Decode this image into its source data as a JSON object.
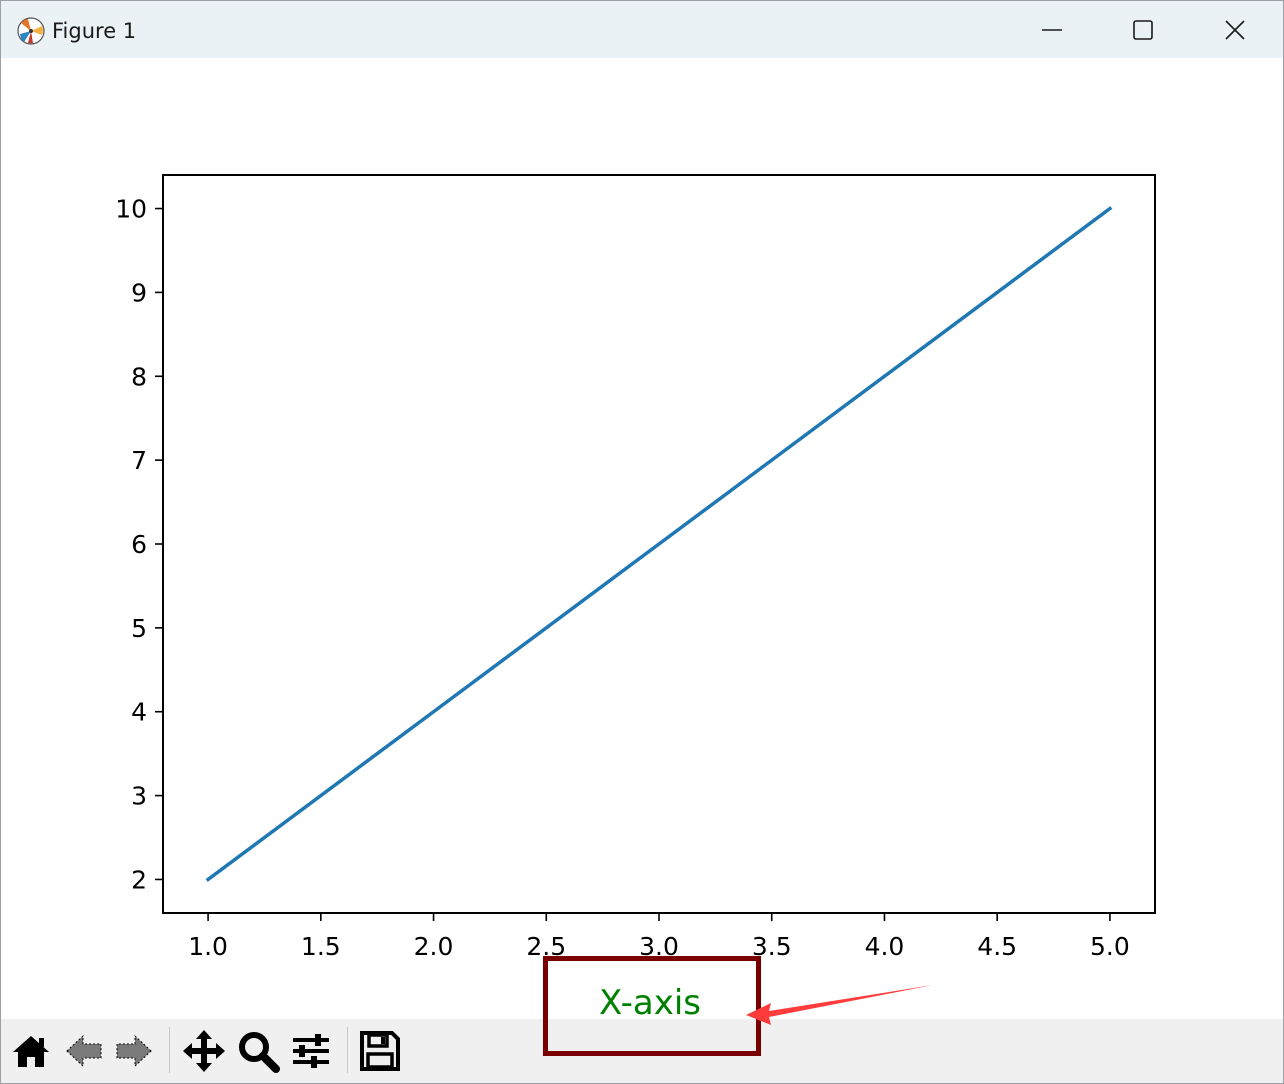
{
  "window": {
    "title": "Figure 1",
    "controls": [
      "minimize-icon",
      "maximize-icon",
      "close-icon"
    ]
  },
  "toolbar": {
    "buttons": [
      {
        "name": "home",
        "icon": "home-icon"
      },
      {
        "name": "back",
        "icon": "back-arrow-icon"
      },
      {
        "name": "forward",
        "icon": "forward-arrow-icon"
      },
      {
        "name": "pan",
        "icon": "move-icon"
      },
      {
        "name": "zoom",
        "icon": "magnifier-icon"
      },
      {
        "name": "configure-subplots",
        "icon": "sliders-icon"
      },
      {
        "name": "save",
        "icon": "floppy-disk-icon"
      }
    ]
  },
  "chart_data": {
    "type": "line",
    "x": [
      1,
      2,
      3,
      4,
      5
    ],
    "series": [
      {
        "values": [
          2,
          4,
          6,
          8,
          10
        ],
        "color": "#1f77b4"
      }
    ],
    "xlabel": "X-axis",
    "xlabel_color": "#008000",
    "xticks": [
      "1.0",
      "1.5",
      "2.0",
      "2.5",
      "3.0",
      "3.5",
      "4.0",
      "4.5",
      "5.0"
    ],
    "yticks": [
      "2",
      "3",
      "4",
      "5",
      "6",
      "7",
      "8",
      "9",
      "10"
    ],
    "xlim": [
      0.8,
      5.2
    ],
    "ylim": [
      1.6,
      10.4
    ],
    "grid": false
  },
  "annotation": {
    "highlight_color": "#7a0000",
    "arrow_color": "#ff3b3b"
  }
}
